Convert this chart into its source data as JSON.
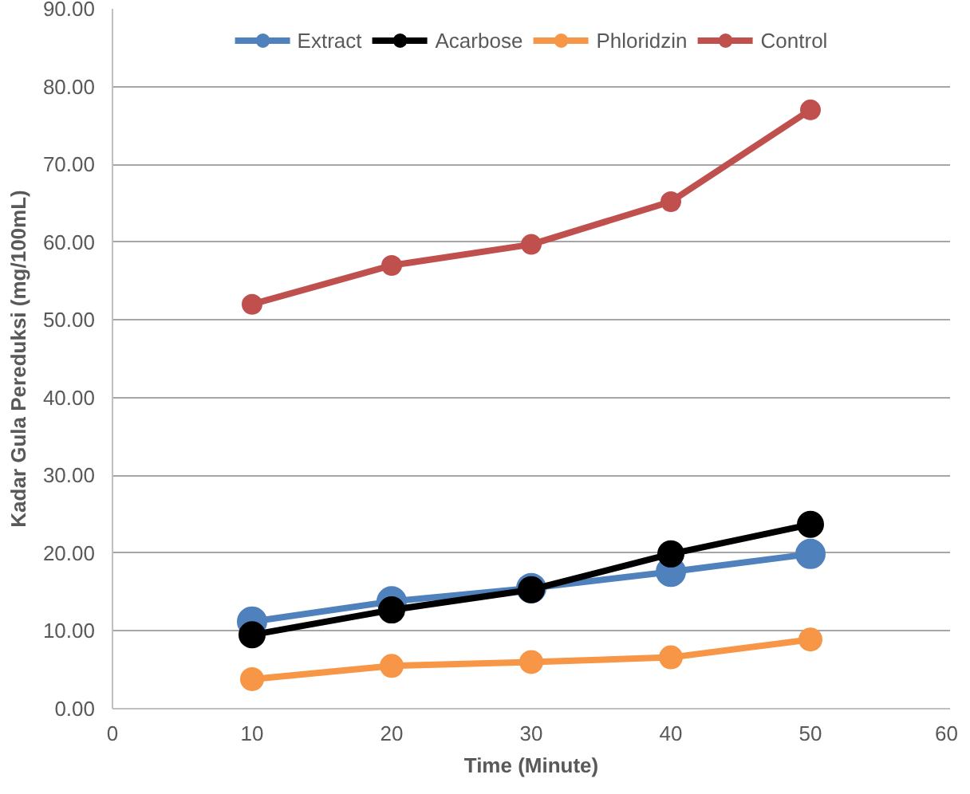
{
  "chart_data": {
    "type": "line",
    "xlabel": "Time (Minute)",
    "ylabel": "Kadar Gula Pereduksi (mg/100mL)",
    "x": [
      10,
      20,
      30,
      40,
      50
    ],
    "series": [
      {
        "name": "Extract",
        "color": "#4f81bd",
        "values": [
          11.2,
          13.8,
          15.5,
          17.6,
          19.9
        ]
      },
      {
        "name": "Acarbose",
        "color": "#000000",
        "values": [
          9.5,
          12.7,
          15.3,
          19.9,
          23.7
        ]
      },
      {
        "name": "Phloridzin",
        "color": "#f79646",
        "values": [
          3.8,
          5.5,
          6.0,
          6.6,
          8.9
        ]
      },
      {
        "name": "Control",
        "color": "#c0504d",
        "values": [
          52.0,
          57.0,
          59.7,
          65.2,
          77.0
        ]
      }
    ],
    "xlim": [
      0,
      60
    ],
    "xticks": [
      0,
      10,
      20,
      30,
      40,
      50,
      60
    ],
    "ylim": [
      0,
      90
    ],
    "yticks": [
      {
        "value": 0,
        "label": "0.00"
      },
      {
        "value": 10,
        "label": "10.00"
      },
      {
        "value": 20,
        "label": "20.00"
      },
      {
        "value": 30,
        "label": "30.00"
      },
      {
        "value": 40,
        "label": "40.00"
      },
      {
        "value": 50,
        "label": "50.00"
      },
      {
        "value": 60,
        "label": "60.00"
      },
      {
        "value": 70,
        "label": "70.00"
      },
      {
        "value": 80,
        "label": "80.00"
      },
      {
        "value": 90,
        "label": "90.00"
      }
    ],
    "grid": "y",
    "legend": "top",
    "marker": "circle",
    "line_style": "solid"
  }
}
